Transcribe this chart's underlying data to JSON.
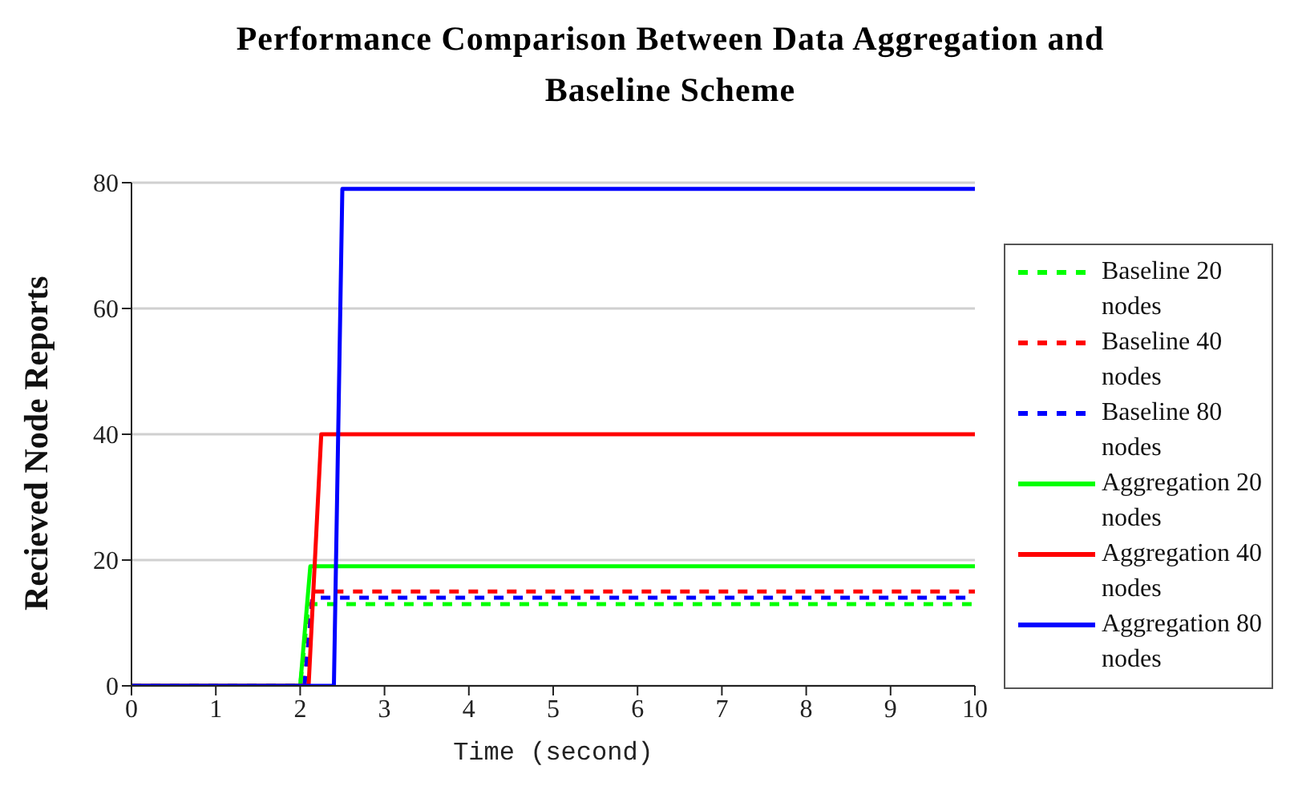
{
  "chart_data": {
    "type": "line",
    "title": "Performance Comparison Between Data Aggregation and Baseline Scheme",
    "xlabel": "Time (second)",
    "ylabel": "Recieved Node Reports",
    "xlim": [
      0,
      10
    ],
    "xticks": [
      0,
      1,
      2,
      3,
      4,
      5,
      6,
      7,
      8,
      9,
      10
    ],
    "ylim": [
      0,
      80
    ],
    "yticks": [
      0,
      20,
      40,
      60,
      80
    ],
    "grid": "y",
    "legend": "right",
    "marker": "none",
    "series": [
      {
        "name": "Baseline 20 nodes",
        "color": "#00ff00",
        "line_style": "dashed",
        "x": [
          0,
          2.0,
          2.1,
          10
        ],
        "values": [
          0,
          0,
          13,
          13
        ]
      },
      {
        "name": "Baseline 40 nodes",
        "color": "#ff0000",
        "line_style": "dashed",
        "x": [
          0,
          2.05,
          2.15,
          10
        ],
        "values": [
          0,
          0,
          15,
          15
        ]
      },
      {
        "name": "Baseline 80 nodes",
        "color": "#0000ff",
        "line_style": "dashed",
        "x": [
          0,
          2.05,
          2.15,
          10
        ],
        "values": [
          0,
          0,
          14,
          14
        ]
      },
      {
        "name": "Aggregation 20 nodes",
        "color": "#00ff00",
        "line_style": "solid",
        "x": [
          0,
          2.0,
          2.12,
          10
        ],
        "values": [
          0,
          0,
          19,
          19
        ]
      },
      {
        "name": "Aggregation 40 nodes",
        "color": "#ff0000",
        "line_style": "solid",
        "x": [
          0,
          2.1,
          2.25,
          10
        ],
        "values": [
          0,
          0,
          40,
          40
        ]
      },
      {
        "name": "Aggregation 80 nodes",
        "color": "#0000ff",
        "line_style": "solid",
        "x": [
          0,
          2.4,
          2.5,
          10
        ],
        "values": [
          0,
          0,
          79,
          79
        ]
      }
    ]
  }
}
